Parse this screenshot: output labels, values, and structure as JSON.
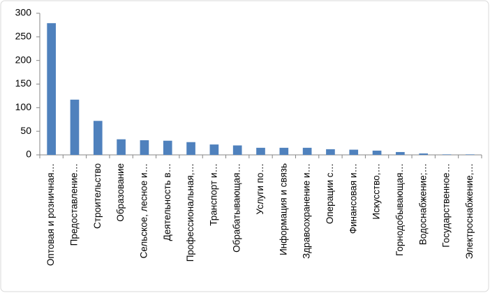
{
  "chart_data": {
    "type": "bar",
    "color": "#4f81bd",
    "grid": false,
    "categories": [
      "Оптовая и розничная…",
      "Предоставление…",
      "Строительство",
      "Образование",
      "Сельское, лесное и…",
      "Деятельность в…",
      "Профессиональная,…",
      "Транспорт и…",
      "Обрабатывающая…",
      "Услуги по…",
      "Информация и связь",
      "Здравоохранение и…",
      "Операции с…",
      "Финансовая и…",
      "Искусство,…",
      "Горнодобывающая…",
      "Водоснабжение;…",
      "Государственное…",
      "Электроснабжение,…"
    ],
    "values": [
      279,
      117,
      72,
      33,
      31,
      30,
      27,
      22,
      20,
      15,
      15,
      15,
      12,
      11,
      9,
      6,
      3,
      1,
      1
    ],
    "ylim": [
      0,
      300
    ],
    "yticks": [
      0,
      50,
      100,
      150,
      200,
      250,
      300
    ]
  }
}
